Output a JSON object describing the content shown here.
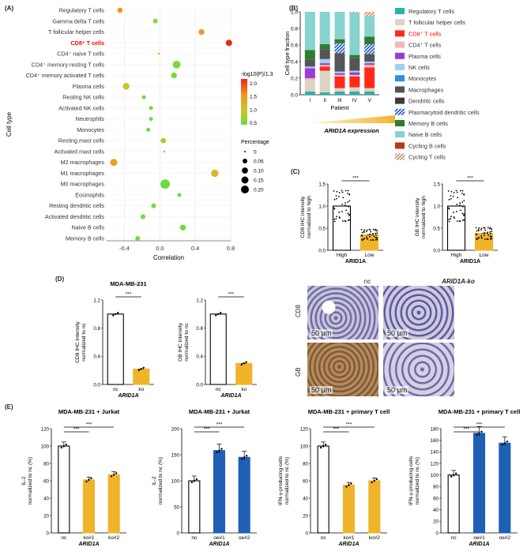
{
  "panels": {
    "A": "(A)",
    "B": "(B)",
    "C": "(C)",
    "D": "(D)",
    "E": "(E)"
  },
  "colors": {
    "orange": "#f0b429",
    "blue": "#1f5fb4",
    "black": "#000000",
    "highlight": "#ff0000"
  },
  "chart_data": [
    {
      "id": "A",
      "type": "scatter",
      "xlabel": "Correlation",
      "ylabel": "Cell type",
      "xlim": [
        -0.6,
        0.8
      ],
      "xticks": [
        "-0.4",
        "0.0",
        "0.4",
        "0.8"
      ],
      "color_legend_title": "-log10(P)/1.3",
      "color_ticks": [
        "2.0",
        "1.5",
        "1.0",
        "0.5"
      ],
      "size_legend_title": "Percentage",
      "size_ticks": [
        "0",
        "0.05",
        "0.10",
        "0.15",
        "0.20"
      ],
      "highlight_label": "CD8⁺ T cells",
      "categories": [
        "Regulatory T cells",
        "Gamma delta T cells",
        "T follicular helper cells",
        "CD8⁺ T cells",
        "CD4⁺ naive T cells",
        "CD4⁺ memory resting T cells",
        "CD4⁺ memory activated T cells",
        "Plasma cells",
        "Resting NK cells",
        "Activated NK cells",
        "Neutrophils",
        "Monocytes",
        "Resting mast cells",
        "Activated mast cells",
        "M2 macrophages",
        "M1 macrophages",
        "M0 macrophages",
        "Eosinophils",
        "Resting dendritic cells",
        "Activated dendritic cells",
        "Naive B cells",
        "Memory B cells"
      ],
      "x": [
        -0.45,
        -0.05,
        0.47,
        0.78,
        -0.01,
        0.19,
        0.16,
        -0.38,
        -0.18,
        -0.1,
        -0.1,
        -0.13,
        0.04,
        0.05,
        -0.52,
        0.62,
        0.06,
        0.22,
        -0.07,
        -0.19,
        0.26,
        -0.25
      ],
      "color_value": [
        1.6,
        0.3,
        1.6,
        2.3,
        1.2,
        0.3,
        0.2,
        0.9,
        0.2,
        0.2,
        0.2,
        0.2,
        0.6,
        0.3,
        1.5,
        1.1,
        0.2,
        0.2,
        0.2,
        0.2,
        0.2,
        0.2
      ],
      "percentage": [
        0.03,
        0.02,
        0.04,
        0.05,
        0.0,
        0.09,
        0.04,
        0.06,
        0.01,
        0.01,
        0.01,
        0.01,
        0.03,
        0.0,
        0.07,
        0.08,
        0.15,
        0.01,
        0.02,
        0.02,
        0.04,
        0.02
      ]
    },
    {
      "id": "B",
      "type": "bar",
      "stacked": true,
      "xlabel": "Patient",
      "ylabel": "Cell type fraction",
      "categories": [
        "I",
        "II",
        "III",
        "IV",
        "V"
      ],
      "ylim": [
        0,
        1.0
      ],
      "yticks": [
        "0.0",
        "0.2",
        "0.4",
        "0.6",
        "0.8",
        "1.0"
      ],
      "gradient_label": "ARID1A expression",
      "series": [
        {
          "name": "Regulatory T cells",
          "color": "#2ab3a8",
          "values": [
            0.04,
            0.03,
            0.04,
            0.04,
            0.04
          ]
        },
        {
          "name": "T follicular helper cells",
          "color": "#dcd2c6",
          "values": [
            0.14,
            0.26,
            0.04,
            0.05,
            0.04
          ]
        },
        {
          "name": "CD8⁺ T cells",
          "color": "#ff2a1a",
          "values": [
            0.0,
            0.05,
            0.14,
            0.13,
            0.25
          ]
        },
        {
          "name": "CD4⁺ T cells",
          "color": "#f3b6b6",
          "values": [
            0.02,
            0.02,
            0.02,
            0.02,
            0.03
          ]
        },
        {
          "name": "Plasma cells",
          "color": "#9b3bd6",
          "values": [
            0.12,
            0.02,
            0.02,
            0.03,
            0.02
          ]
        },
        {
          "name": "NK cells",
          "color": "#9ad3f5",
          "values": [
            0.02,
            0.05,
            0.02,
            0.02,
            0.02
          ]
        },
        {
          "name": "Monocytes",
          "color": "#2f8fe0",
          "values": [
            0.0,
            0.0,
            0.0,
            0.0,
            0.0
          ]
        },
        {
          "name": "Macrophages",
          "color": "#555555",
          "values": [
            0.08,
            0.12,
            0.22,
            0.15,
            0.09
          ]
        },
        {
          "name": "Dendritic cells",
          "color": "#3a3a3a",
          "values": [
            0.0,
            0.0,
            0.0,
            0.0,
            0.0
          ]
        },
        {
          "name": "Plasmacytoid dendritic cells",
          "color": "#1a56c8",
          "values": [
            0.0,
            0.0,
            0.12,
            0.0,
            0.12
          ]
        },
        {
          "name": "Memory B cells",
          "color": "#2e7d32",
          "values": [
            0.12,
            0.06,
            0.05,
            0.04,
            0.09
          ]
        },
        {
          "name": "Naive B cells",
          "color": "#86d3cf",
          "values": [
            0.46,
            0.39,
            0.33,
            0.51,
            0.25
          ]
        },
        {
          "name": "Cycling B cells",
          "color": "#b23b1a",
          "values": [
            0.0,
            0.0,
            0.0,
            0.0,
            0.0
          ]
        },
        {
          "name": "Cycling T cells",
          "color": "#c98a68",
          "values": [
            0.0,
            0.0,
            0.0,
            0.01,
            0.05
          ]
        }
      ]
    },
    {
      "id": "C1",
      "type": "bar",
      "ylabel": "CD8 IHC intensity\nnormalized to high",
      "xlabel": "ARID1A",
      "categories": [
        "High",
        "Low"
      ],
      "values": [
        1.0,
        0.35
      ],
      "ylim": [
        0,
        1.5
      ],
      "yticks": [
        "0.0",
        "0.5",
        "1.0",
        "1.5"
      ],
      "significance": "***"
    },
    {
      "id": "C2",
      "type": "bar",
      "ylabel": "GB IHC intensity\nnormalized to high",
      "xlabel": "ARID1A",
      "categories": [
        "High",
        "Low"
      ],
      "values": [
        1.0,
        0.38
      ],
      "ylim": [
        0,
        1.5
      ],
      "yticks": [
        "0.0",
        "0.5",
        "1.0",
        "1.5"
      ],
      "significance": "***"
    },
    {
      "id": "D1",
      "type": "bar",
      "title": "MDA-MB-231",
      "ylabel": "CD8 IHC intensity\nnormalized to nc",
      "xlabel": "ARID1A",
      "categories": [
        "nc",
        "ko"
      ],
      "values": [
        1.0,
        0.22
      ],
      "ylim": [
        0,
        1.2
      ],
      "yticks": [
        "0.0",
        "0.4",
        "0.8",
        "1.2"
      ],
      "significance": "***"
    },
    {
      "id": "D2",
      "type": "bar",
      "ylabel": "GB IHC intensity\nnormalized to nc",
      "xlabel": "ARID1A",
      "categories": [
        "nc",
        "ko"
      ],
      "values": [
        1.0,
        0.3
      ],
      "ylim": [
        0,
        1.2
      ],
      "yticks": [
        "0.0",
        "0.4",
        "0.8",
        "1.2"
      ],
      "significance": "***"
    },
    {
      "id": "E1",
      "type": "bar",
      "title": "MDA-MB-231 + Jurkat",
      "ylabel": "IL-2\nnormalized to nc (%)",
      "xlabel": "ARID1A",
      "categories": [
        "nc",
        "ko#1",
        "ko#2"
      ],
      "values": [
        100,
        61,
        67
      ],
      "ylim": [
        0,
        120
      ],
      "yticks": [
        "0",
        "20",
        "40",
        "60",
        "80",
        "100",
        "120"
      ],
      "significance": [
        "***",
        "***"
      ]
    },
    {
      "id": "E2",
      "type": "bar",
      "title": "MDA-MB-231 + Jurkat",
      "ylabel": "IL-2\nnormalized to nc (%)",
      "xlabel": "ARID1A",
      "categories": [
        "nc",
        "oe#1",
        "oe#2"
      ],
      "values": [
        100,
        158,
        145
      ],
      "ylim": [
        0,
        200
      ],
      "yticks": [
        "0",
        "50",
        "100",
        "150",
        "200"
      ],
      "significance": [
        "***",
        "***"
      ]
    },
    {
      "id": "E3",
      "type": "bar",
      "title": "MDA-MB-231 + primary T cell",
      "ylabel": "IFN-γ-producing cells\nnormalized to nc (%)",
      "xlabel": "ARID1A",
      "categories": [
        "nc",
        "ko#1",
        "ko#2"
      ],
      "values": [
        100,
        55,
        60
      ],
      "ylim": [
        0,
        120
      ],
      "yticks": [
        "0",
        "20",
        "40",
        "60",
        "80",
        "100",
        "120"
      ],
      "significance": [
        "***",
        "***"
      ]
    },
    {
      "id": "E4",
      "type": "bar",
      "title": "MDA-MB-231 + primary T cell",
      "ylabel": "IFN-γ-producing cells\nnormalized to nc (%)",
      "xlabel": "ARID1A",
      "categories": [
        "nc",
        "oe#1",
        "oe#2"
      ],
      "values": [
        100,
        172,
        155
      ],
      "ylim": [
        0,
        180
      ],
      "yticks": [
        "0",
        "20",
        "40",
        "60",
        "80",
        "100",
        "120",
        "140",
        "160",
        "180"
      ],
      "significance": [
        "***",
        "***"
      ]
    }
  ],
  "ihc": {
    "col_labels": [
      "nc",
      "ARID1A-ko"
    ],
    "row_labels": [
      "CD8",
      "GB"
    ],
    "scale_bar": "50 μm"
  }
}
